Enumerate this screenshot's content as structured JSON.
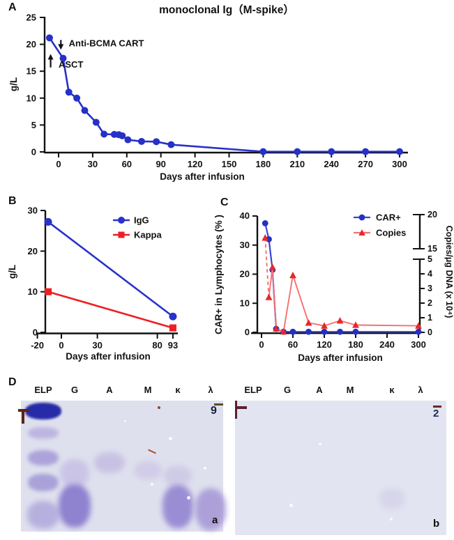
{
  "panels": {
    "a": "A",
    "b": "B",
    "c": "C",
    "d": "D"
  },
  "chart_data": [
    {
      "id": "m-spike",
      "type": "line",
      "title": "monoclonal Ig（M-spike）",
      "xlabel": "Days after infusion",
      "ylabel": "g/L",
      "xlim": [
        -13,
        315
      ],
      "ylim": [
        0,
        25
      ],
      "xticks": [
        0,
        30,
        60,
        90,
        120,
        150,
        180,
        210,
        240,
        270,
        300
      ],
      "yticks": [
        0,
        5,
        10,
        15,
        20,
        25
      ],
      "grid": false,
      "series": [
        {
          "name": "M-spike",
          "color": "#2631c8",
          "marker": "circle",
          "x": [
            -8,
            4,
            9,
            16,
            23,
            33,
            40,
            49,
            53,
            56,
            61,
            73,
            86,
            99,
            180,
            210,
            240,
            270,
            300
          ],
          "y": [
            21.2,
            17.4,
            11.1,
            10.0,
            7.7,
            5.5,
            3.3,
            3.25,
            3.2,
            3.0,
            2.25,
            1.95,
            1.9,
            1.35,
            0.05,
            0.05,
            0.05,
            0.05,
            0.05
          ]
        }
      ],
      "annotations": [
        {
          "text": "Anti-BCMA CART",
          "dir": "down",
          "arrow_x": 2,
          "arrow_y_from": 20.8,
          "arrow_y_to": 19.0,
          "label_x": 9,
          "label_y": 19.6
        },
        {
          "text": "ASCT",
          "dir": "up",
          "arrow_x": -7,
          "arrow_y_from": 15.7,
          "arrow_y_to": 18.2,
          "label_x": 0,
          "label_y": 15.7
        }
      ]
    },
    {
      "id": "igg-kappa",
      "type": "line",
      "xlabel": "Days after infusion",
      "ylabel": "g/L",
      "xlim": [
        -25,
        100
      ],
      "ylim": [
        0,
        30
      ],
      "xticks": [
        -20,
        0,
        30,
        80,
        93
      ],
      "yticks": [
        0,
        10,
        20,
        30
      ],
      "grid": false,
      "legend_position": "top-right",
      "series": [
        {
          "name": "IgG",
          "color": "#2733c9",
          "marker": "circle",
          "x": [
            -11,
            93
          ],
          "y": [
            27.2,
            3.9
          ]
        },
        {
          "name": "Kappa",
          "color": "#ed1f24",
          "marker": "square",
          "x": [
            -11,
            93
          ],
          "y": [
            10.0,
            1.1
          ]
        }
      ]
    },
    {
      "id": "car-expansion",
      "type": "line",
      "xlabel": "Days after infusion",
      "ylabel_left": "CAR+ in Lymphocytes (% )",
      "ylabel_right": "Copies/μg DNA (x 10⁴)",
      "xlim": [
        -10,
        310
      ],
      "ylim_left": [
        0,
        40
      ],
      "right_axis": {
        "lower_range": [
          0,
          5
        ],
        "upper_range": [
          15,
          20
        ],
        "ticks_lower": [
          0,
          1,
          2,
          3,
          4,
          5
        ],
        "ticks_upper": [
          15,
          20
        ],
        "break": true
      },
      "xticks": [
        0,
        60,
        120,
        180,
        240,
        300
      ],
      "yticks_left": [
        0,
        10,
        20,
        30,
        40
      ],
      "grid": false,
      "legend_position": "top-right",
      "series": [
        {
          "name": "CAR+",
          "axis": "left",
          "color": "#3a46d2",
          "marker_color": "#2430c4",
          "marker": "circle",
          "x": [
            7,
            14,
            21,
            28,
            42,
            60,
            90,
            120,
            150,
            180,
            300
          ],
          "y": [
            37.5,
            32.0,
            21.5,
            1.2,
            0.2,
            0.2,
            0.2,
            0.2,
            0.2,
            0.2,
            0.2
          ]
        },
        {
          "name": "Copies",
          "axis": "right",
          "color": "#f57070",
          "marker_color": "#e8282c",
          "marker": "triangle",
          "first_segment_dashed": true,
          "x": [
            7,
            14,
            21,
            28,
            42,
            60,
            90,
            120,
            150,
            180,
            300
          ],
          "y": [
            16.6,
            2.4,
            4.45,
            0.25,
            0.05,
            3.9,
            0.65,
            0.45,
            0.8,
            0.5,
            0.45
          ]
        }
      ]
    }
  ],
  "gels": {
    "lane_labels": [
      "ELP",
      "G",
      "A",
      "M",
      "κ",
      "λ"
    ],
    "left": {
      "tag": "a",
      "corner_glyph": "9",
      "edge_mark_shape": "tee",
      "bands": [
        {
          "lane": 0,
          "y": 3,
          "w": 52,
          "h": 24,
          "color": "#1f24a6",
          "blur": 1.6,
          "opacity": 0.96
        },
        {
          "lane": 0,
          "y": 38,
          "w": 44,
          "h": 17,
          "color": "#b7aede",
          "blur": 3,
          "opacity": 0.85
        },
        {
          "lane": 0,
          "y": 71,
          "w": 44,
          "h": 22,
          "color": "#a79dd8",
          "blur": 3,
          "opacity": 0.9
        },
        {
          "lane": 0,
          "y": 105,
          "w": 44,
          "h": 25,
          "color": "#a49bd6",
          "blur": 3,
          "opacity": 0.9
        },
        {
          "lane": 0,
          "y": 144,
          "w": 46,
          "h": 40,
          "color": "#b0a8dc",
          "blur": 4,
          "opacity": 0.85
        },
        {
          "lane": 1,
          "y": 84,
          "w": 42,
          "h": 40,
          "color": "#c6bee5",
          "blur": 4,
          "opacity": 0.8
        },
        {
          "lane": 1,
          "y": 120,
          "w": 46,
          "h": 62,
          "color": "#8b7dce",
          "blur": 4,
          "opacity": 0.95
        },
        {
          "lane": 2,
          "y": 74,
          "w": 44,
          "h": 30,
          "color": "#c3bbe0",
          "blur": 4,
          "opacity": 0.8
        },
        {
          "lane": 3,
          "y": 87,
          "w": 40,
          "h": 26,
          "color": "#cdc6e5",
          "blur": 4,
          "opacity": 0.75
        },
        {
          "lane": 4,
          "y": 93,
          "w": 40,
          "h": 30,
          "color": "#c8c1e3",
          "blur": 4,
          "opacity": 0.65
        },
        {
          "lane": 4,
          "y": 121,
          "w": 44,
          "h": 62,
          "color": "#9789d3",
          "blur": 4,
          "opacity": 0.95
        },
        {
          "lane": 5,
          "y": 126,
          "w": 44,
          "h": 60,
          "color": "#a89ad7",
          "blur": 4,
          "opacity": 0.9
        }
      ]
    },
    "right": {
      "tag": "b",
      "corner_glyph": "2",
      "edge_mark_shape": "tee",
      "bands": [
        {
          "lane": 4,
          "y": 126,
          "w": 36,
          "h": 30,
          "color": "#d6d3ea",
          "blur": 4,
          "opacity": 0.85
        }
      ]
    }
  }
}
